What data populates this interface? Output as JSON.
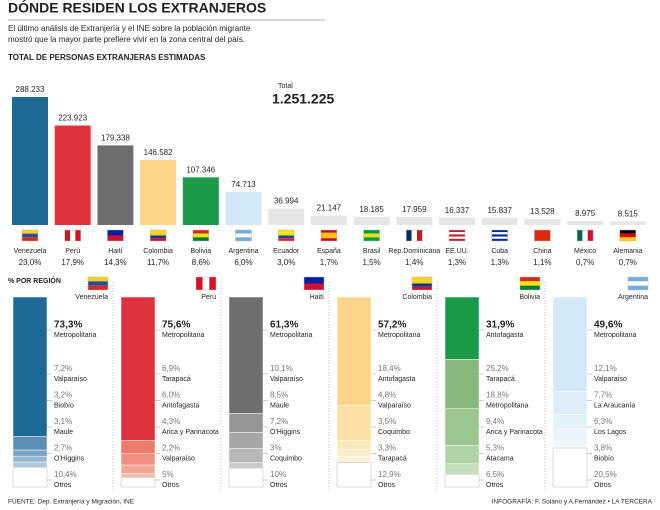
{
  "header": {
    "title": "DÓNDE RESIDEN LOS EXTRANJEROS",
    "subtitle_lines": [
      "El último análisis de Extranjería y el INE sobre la población migrante",
      "mostró que la mayor parte prefiere vivir en la zona central del país."
    ],
    "section_title": "TOTAL DE PERSONAS EXTRANJERAS ESTIMADAS",
    "total_label": "Total",
    "total_value": 1251225,
    "total_value_label": "1.251.225",
    "region_section_title": "% POR REGIÓN"
  },
  "chart_data": [
    {
      "type": "bar",
      "categories": [
        "Venezuela",
        "Perú",
        "Haití",
        "Colombia",
        "Bolivia",
        "Argentina",
        "Ecuador",
        "España",
        "Brasil",
        "Rep.Dominicana",
        "EE.UU.",
        "Cuba",
        "China",
        "México",
        "Alemania"
      ],
      "values": [
        288233,
        223923,
        179338,
        146582,
        107346,
        74713,
        36994,
        21147,
        18185,
        17959,
        16337,
        15837,
        13528,
        8975,
        8515
      ],
      "value_labels": [
        "288.233",
        "223.923",
        "179.338",
        "146.582",
        "107.346",
        "74.713",
        "36.994",
        "21.147",
        "18.185",
        "17.959",
        "16.337",
        "15.837",
        "13.528",
        "8.975",
        "8.515"
      ],
      "share_values": [
        23.0,
        17.9,
        14.3,
        11.7,
        8.6,
        6.0,
        3.0,
        1.7,
        1.5,
        1.4,
        1.3,
        1.3,
        1.1,
        0.7,
        0.7
      ],
      "share_labels": [
        "23,0%",
        "17,9%",
        "14,3%",
        "11,7%",
        "8,6%",
        "6,0%",
        "3,0%",
        "1,7%",
        "1,5%",
        "1,4%",
        "1,3%",
        "1,3%",
        "1,1%",
        "0,7%",
        "0,7%"
      ],
      "colors": [
        "#1d6a96",
        "#e0323c",
        "#6d6e70",
        "#fdd58a",
        "#1a9a48",
        "#d4e9f7",
        "#e6e6e6",
        "#e6e6e6",
        "#e6e6e6",
        "#e6e6e6",
        "#e6e6e6",
        "#e6e6e6",
        "#e6e6e6",
        "#e6e6e6",
        "#e6e6e6"
      ]
    },
    {
      "type": "stacked",
      "title": "Venezuela",
      "categories": [
        "Metropolitana",
        "Valparaíso",
        "Biobío",
        "Maule",
        "O'Higgins",
        "Otros"
      ],
      "values": [
        73.3,
        7.2,
        3.2,
        3.1,
        2.7,
        10.4
      ],
      "value_labels": [
        "73,3%",
        "7,2%",
        "3,2%",
        "3,1%",
        "2,7%",
        "10,4%"
      ],
      "colors": [
        "#1d6a96",
        "#5b8fb5",
        "#7aa4c3",
        "#94b6cf",
        "#afc8db",
        "#ffffff"
      ]
    },
    {
      "type": "stacked",
      "title": "Perú",
      "categories": [
        "Metropolitana",
        "Tarapacá",
        "Antofagasta",
        "Arica y Parinacota",
        "Valparaíso",
        "Otros"
      ],
      "values": [
        75.6,
        6.9,
        6.0,
        4.3,
        2.2,
        5
      ],
      "value_labels": [
        "75,6%",
        "6,9%",
        "6,0%",
        "4,3%",
        "2,2%",
        "5%"
      ],
      "colors": [
        "#e0323c",
        "#ec7b6c",
        "#f09080",
        "#f3a594",
        "#f6baab",
        "#ffffff"
      ]
    },
    {
      "type": "stacked",
      "title": "Haití",
      "categories": [
        "Metropolitana",
        "Valparaíso",
        "Maule",
        "O'Higgins",
        "Coquimbo",
        "Otros"
      ],
      "values": [
        61.3,
        10.1,
        8.5,
        7.2,
        3,
        10
      ],
      "value_labels": [
        "61,3%",
        "10,1%",
        "8,5%",
        "7,2%",
        "3%",
        "10%"
      ],
      "colors": [
        "#6d6e70",
        "#959597",
        "#a6a6a8",
        "#b7b7b9",
        "#c8c8ca",
        "#ffffff"
      ]
    },
    {
      "type": "stacked",
      "title": "Colombia",
      "categories": [
        "Metropolitana",
        "Antofagasta",
        "Valparaíso",
        "Coquimbo",
        "Tarapacá",
        "Otros"
      ],
      "values": [
        57.2,
        18.4,
        4.8,
        3.5,
        3.3,
        12.9
      ],
      "value_labels": [
        "57,2%",
        "18,4%",
        "4,8%",
        "3,5%",
        "3,3%",
        "12,9%"
      ],
      "colors": [
        "#fdd58a",
        "#fde0a6",
        "#fee7b8",
        "#feedca",
        "#fff2d8",
        "#ffffff"
      ]
    },
    {
      "type": "stacked",
      "title": "Bolivia",
      "categories": [
        "Antofagasta",
        "Tarapacá",
        "Metropolitana",
        "Arica y Parinacota",
        "Atacama",
        "Otros"
      ],
      "values": [
        31.9,
        25.2,
        18.8,
        9.4,
        5.3,
        6.5
      ],
      "value_labels": [
        "31,9%",
        "25,2%",
        "18,8%",
        "9,4%",
        "5,3%",
        "6,5%"
      ],
      "colors": [
        "#1a9a48",
        "#86b97b",
        "#9cc690",
        "#b0d2a6",
        "#c4debb",
        "#ffffff"
      ]
    },
    {
      "type": "stacked",
      "title": "Argentina",
      "categories": [
        "Metropolitana",
        "Valparaíso",
        "La Araucanía",
        "Los Lagos",
        "Biobío",
        "Otros"
      ],
      "values": [
        49.6,
        12.1,
        7.7,
        6.3,
        3.8,
        20.5
      ],
      "value_labels": [
        "49,6%",
        "12,1%",
        "7,7%",
        "6,3%",
        "3,8%",
        "20,5%"
      ],
      "colors": [
        "#d4e9f7",
        "#ddeef9",
        "#e3f1fa",
        "#e9f4fb",
        "#eff7fc",
        "#ffffff"
      ]
    }
  ],
  "footer": {
    "source": "FUENTE: Dep. Extranjería y Migración, INE",
    "credit": "INFOGRAFÍA: F. Solano y A.Fernández • LA TERCERA"
  }
}
